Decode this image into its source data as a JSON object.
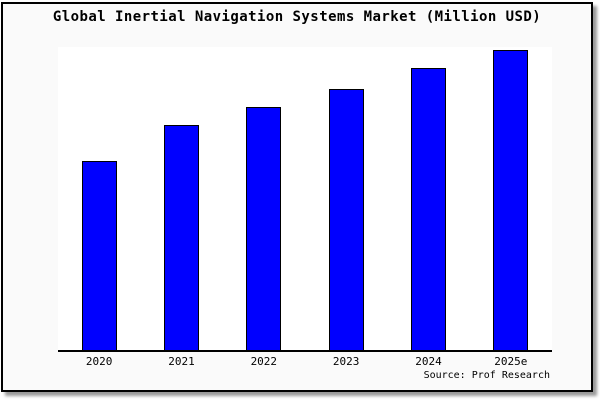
{
  "window": {
    "page_background": "#ffffff",
    "frame_background": "#fafafa",
    "frame_border_color": "#000000"
  },
  "chart_data": {
    "type": "bar",
    "title": "Global Inertial Navigation Systems Market (Million USD)",
    "categories": [
      "2020",
      "2021",
      "2022",
      "2023",
      "2024",
      "2025e"
    ],
    "values": [
      63,
      75,
      81,
      87,
      94,
      100
    ],
    "xlabel": "",
    "ylabel": "",
    "ylim": [
      0,
      101
    ],
    "note": "y-axis has no ticks or labels; values estimated relative to 2025e = 100",
    "bar_color": "#0000ff",
    "bar_border_color": "#000000",
    "gridlines": false,
    "legend": "none",
    "y_axis_ticks_shown": false
  },
  "footer": {
    "source_label": "Source: Prof Research"
  }
}
